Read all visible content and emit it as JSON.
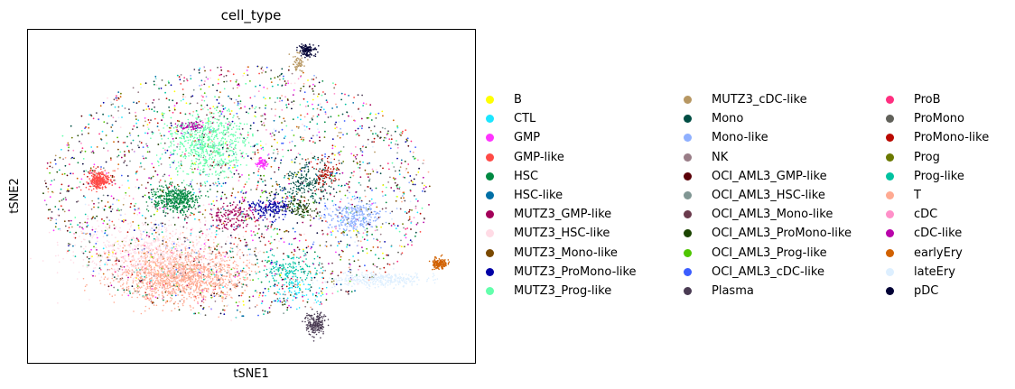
{
  "chart_data": {
    "type": "scatter",
    "title": "cell_type",
    "xlabel": "tSNE1",
    "ylabel": "tSNE2",
    "grid": false,
    "legend_position": "right",
    "xticks": [],
    "yticks": [],
    "series": [
      {
        "name": "B",
        "color": "#ffff00"
      },
      {
        "name": "CTL",
        "color": "#1ce6ff"
      },
      {
        "name": "GMP",
        "color": "#ff34ff"
      },
      {
        "name": "GMP-like",
        "color": "#ff4a46"
      },
      {
        "name": "HSC",
        "color": "#008941"
      },
      {
        "name": "HSC-like",
        "color": "#006fa6"
      },
      {
        "name": "MUTZ3_GMP-like",
        "color": "#a30059"
      },
      {
        "name": "MUTZ3_HSC-like",
        "color": "#ffdbe5"
      },
      {
        "name": "MUTZ3_Mono-like",
        "color": "#7a4900"
      },
      {
        "name": "MUTZ3_ProMono-like",
        "color": "#0000a6"
      },
      {
        "name": "MUTZ3_Prog-like",
        "color": "#63ffac"
      },
      {
        "name": "MUTZ3_cDC-like",
        "color": "#b79762"
      },
      {
        "name": "Mono",
        "color": "#004d43"
      },
      {
        "name": "Mono-like",
        "color": "#8fb0ff"
      },
      {
        "name": "NK",
        "color": "#997d87"
      },
      {
        "name": "OCI_AML3_GMP-like",
        "color": "#5a0007"
      },
      {
        "name": "OCI_AML3_HSC-like",
        "color": "#809693"
      },
      {
        "name": "OCI_AML3_Mono-like",
        "color": "#6a3a4c"
      },
      {
        "name": "OCI_AML3_ProMono-like",
        "color": "#1b4400"
      },
      {
        "name": "OCI_AML3_Prog-like",
        "color": "#4fc601"
      },
      {
        "name": "OCI_AML3_cDC-like",
        "color": "#3b5dff"
      },
      {
        "name": "Plasma",
        "color": "#4a3b53"
      },
      {
        "name": "ProB",
        "color": "#ff2f80"
      },
      {
        "name": "ProMono",
        "color": "#61615a"
      },
      {
        "name": "ProMono-like",
        "color": "#ba0900"
      },
      {
        "name": "Prog",
        "color": "#6b7900"
      },
      {
        "name": "Prog-like",
        "color": "#00c2a0"
      },
      {
        "name": "T",
        "color": "#ffaa92"
      },
      {
        "name": "cDC",
        "color": "#ff90c9"
      },
      {
        "name": "cDC-like",
        "color": "#b903aa"
      },
      {
        "name": "earlyEry",
        "color": "#d16100"
      },
      {
        "name": "lateEry",
        "color": "#ddefff"
      },
      {
        "name": "pDC",
        "color": "#000035"
      }
    ]
  }
}
